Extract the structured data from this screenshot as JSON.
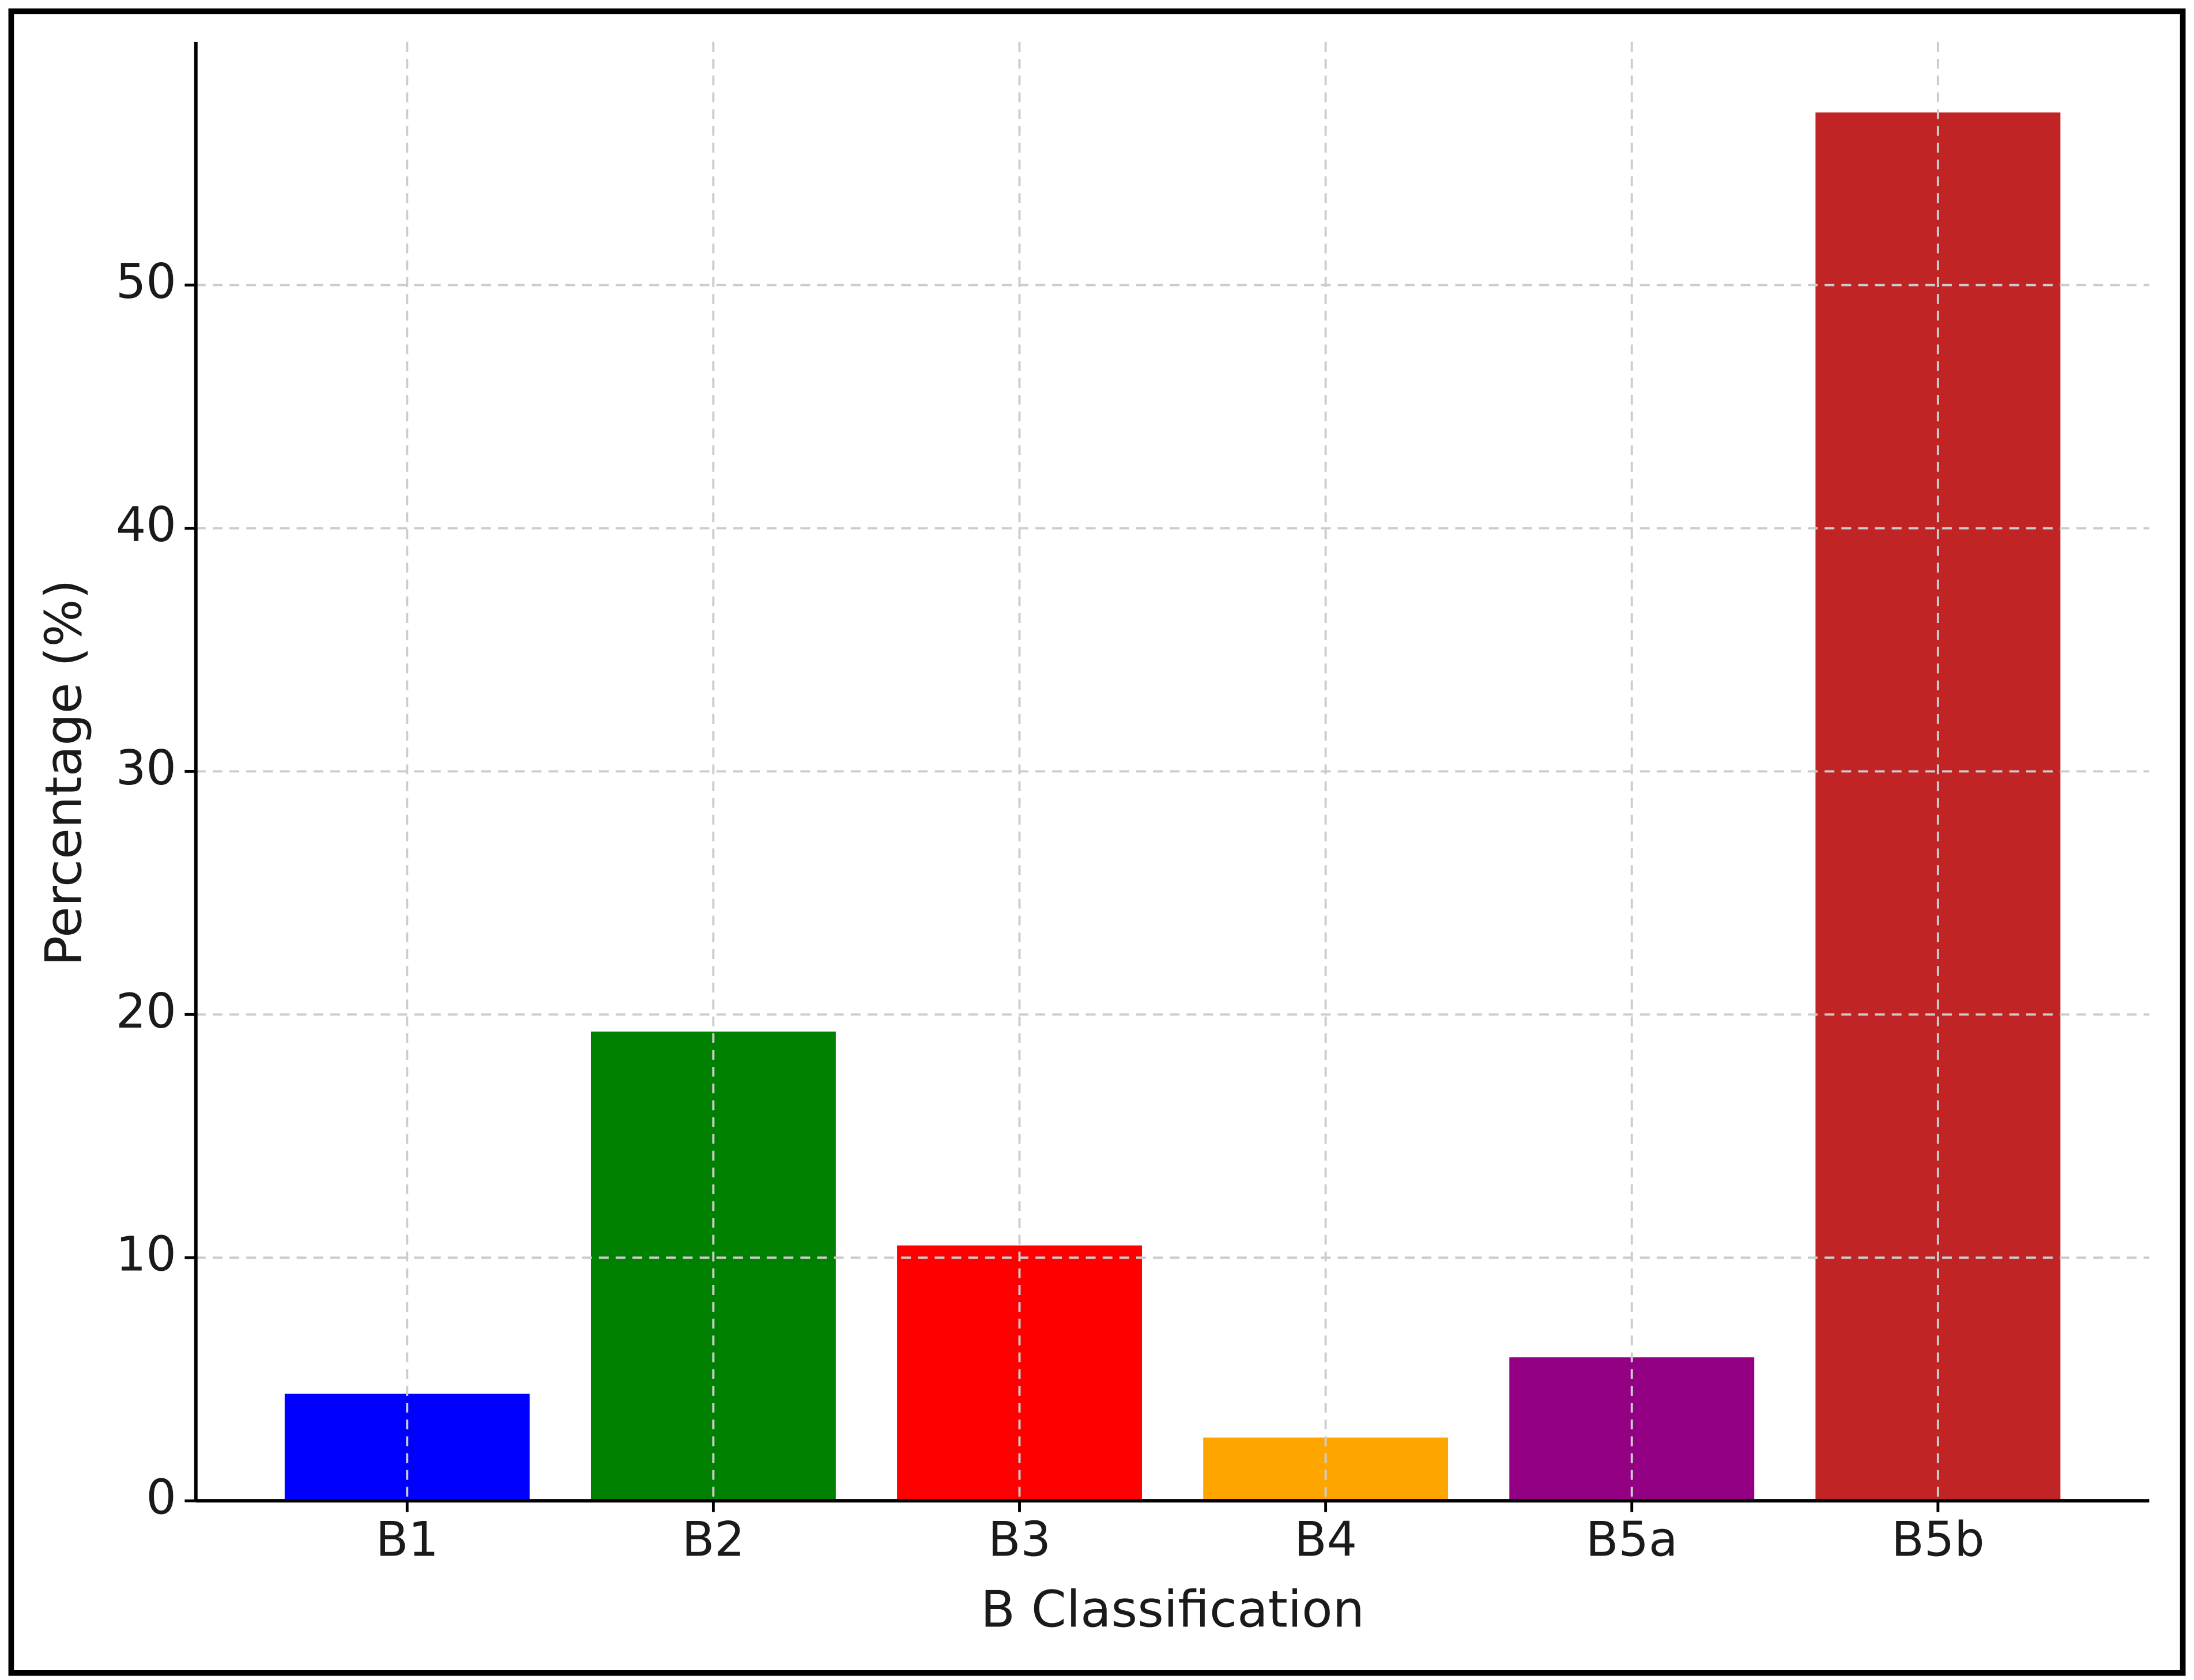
{
  "chart_data": {
    "type": "bar",
    "xlabel": "B Classification",
    "ylabel": "Percentage (%)",
    "categories": [
      "B1",
      "B2",
      "B3",
      "B4",
      "B5a",
      "B5b"
    ],
    "values": [
      4.4,
      19.3,
      10.5,
      2.6,
      5.9,
      57.1
    ],
    "colors": [
      "#0000ff",
      "#008000",
      "#ff0000",
      "#ffa500",
      "#940084",
      "#c02424"
    ],
    "ylim": [
      0,
      60
    ],
    "yticks": [
      0,
      10,
      20,
      30,
      40,
      50
    ],
    "grid": true
  }
}
